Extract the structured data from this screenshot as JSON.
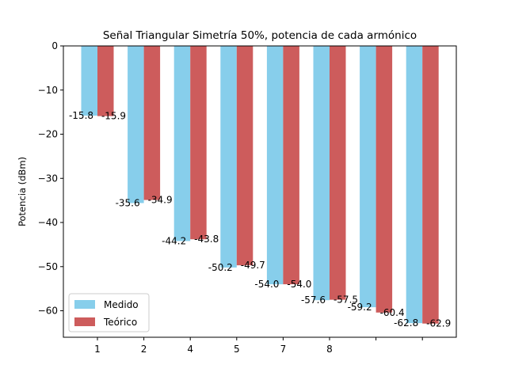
{
  "chart_data": {
    "type": "bar",
    "title": "Señal Triangular Simetría 50%, potencia de cada armónico",
    "xlabel": "",
    "ylabel": "Potencia (dBm)",
    "categories": [
      "1",
      "2",
      "4",
      "5",
      "7",
      "8",
      "",
      ""
    ],
    "series": [
      {
        "name": "Medido",
        "color": "#87ceeb",
        "values": [
          -15.8,
          -35.6,
          -44.2,
          -50.2,
          -54.0,
          -57.6,
          -59.2,
          -62.8
        ]
      },
      {
        "name": "Teórico",
        "color": "#cd5c5c",
        "values": [
          -15.9,
          -34.9,
          -43.8,
          -49.7,
          -54.0,
          -57.5,
          -60.4,
          -62.9
        ]
      }
    ],
    "ylim": [
      -66,
      0
    ],
    "yticks": [
      "0",
      "−10",
      "−20",
      "−30",
      "−40",
      "−50",
      "−60"
    ],
    "ytick_values": [
      0,
      -10,
      -20,
      -30,
      -40,
      -50,
      -60
    ],
    "grid": false,
    "legend_position": "lower-left"
  }
}
